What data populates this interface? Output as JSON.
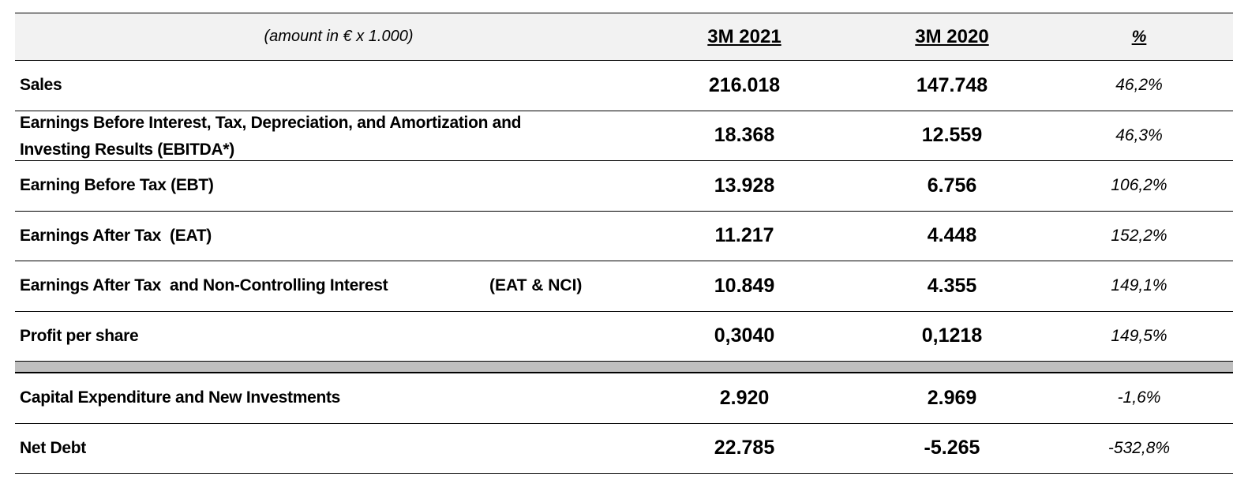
{
  "header": {
    "label": "(amount in € x 1.000)",
    "col_a": "3M 2021",
    "col_b": "3M 2020",
    "col_pct": "%"
  },
  "rows": [
    {
      "label": "Sales",
      "a": "216.018",
      "b": "147.748",
      "pct": "46,2%"
    },
    {
      "label_line1": "Earnings Before Interest, Tax, Depreciation, and Amortization and",
      "label_line2": "Investing Results (EBITDA*)",
      "a": "18.368",
      "b": "12.559",
      "pct": "46,3%"
    },
    {
      "label": "Earning Before Tax (EBT)",
      "a": "13.928",
      "b": "6.756",
      "pct": "106,2%"
    },
    {
      "label": "Earnings After Tax  (EAT)",
      "a": "11.217",
      "b": "4.448",
      "pct": "152,2%"
    },
    {
      "label": "Earnings After Tax  and Non-Controlling Interest",
      "suffix": "(EAT & NCI)",
      "a": "10.849",
      "b": "4.355",
      "pct": "149,1%"
    },
    {
      "label": "Profit per share",
      "a": "0,3040",
      "b": "0,1218",
      "pct": "149,5%"
    },
    {
      "label": "Capital Expenditure and New Investments",
      "a": "2.920",
      "b": "2.969",
      "pct": "-1,6%"
    },
    {
      "label": "Net Debt",
      "a": "22.785",
      "b": "-5.265",
      "pct": "-532,8%"
    }
  ]
}
